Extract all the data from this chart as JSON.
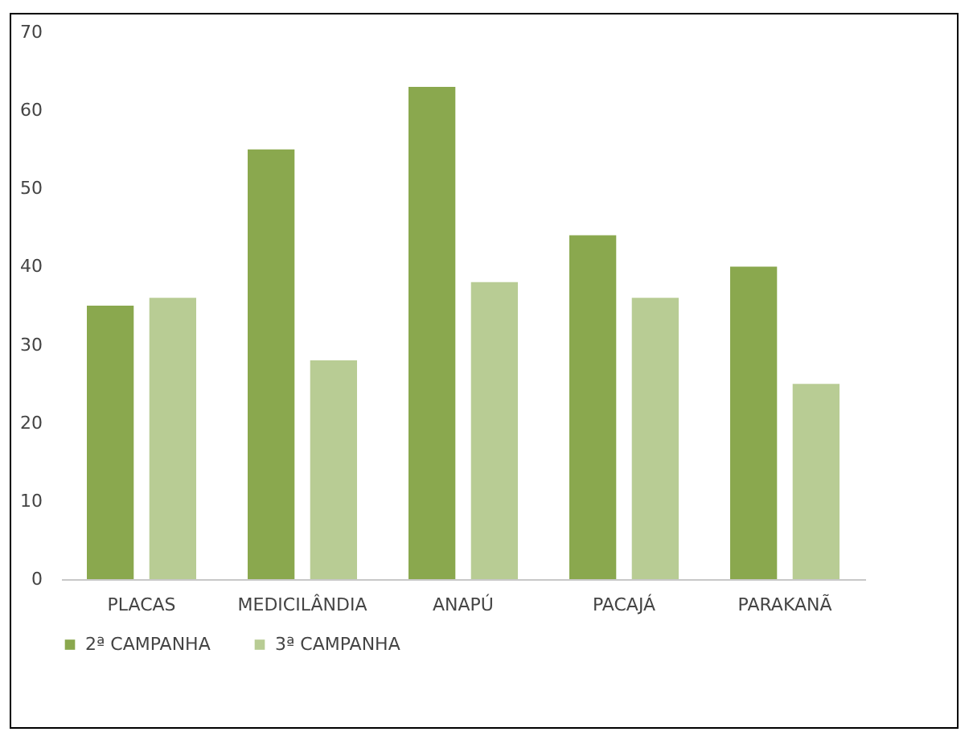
{
  "chart_data": {
    "type": "bar",
    "categories": [
      "PLACAS",
      "MEDICILÂNDIA",
      "ANAPÚ",
      "PACAJÁ",
      "PARAKANÃ"
    ],
    "series": [
      {
        "name": "2ª CAMPANHA",
        "color": "#8aa84e",
        "values": [
          35,
          55,
          63,
          44,
          40
        ]
      },
      {
        "name": "3ª CAMPANHA",
        "color": "#b8cc94",
        "values": [
          36,
          28,
          38,
          36,
          25
        ]
      }
    ],
    "ylim": [
      0,
      70
    ],
    "yticks": [
      0,
      10,
      20,
      30,
      40,
      50,
      60,
      70
    ],
    "grid": false,
    "legend": "bottom"
  }
}
